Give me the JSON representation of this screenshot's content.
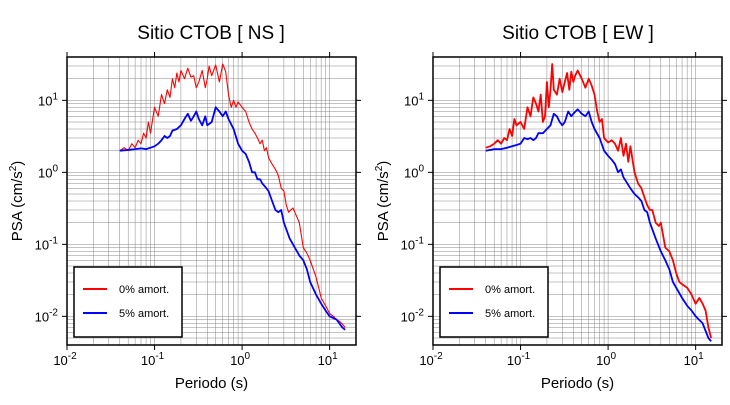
{
  "chart_data": [
    {
      "type": "line",
      "title": "Sitio CTOB [ NS ]",
      "xlabel": "Periodo (s)",
      "ylabel": "PSA (cm/s2)",
      "ylabel_main": "PSA (cm/s",
      "ylabel_sup": "2",
      "ylabel_close": ")",
      "xscale": "log",
      "yscale": "log",
      "xlim": [
        0.01,
        20
      ],
      "ylim": [
        0.004,
        40
      ],
      "grid": true,
      "legend_position": "bottom-left",
      "x_ticks": [
        {
          "base": "10",
          "exp": "-2"
        },
        {
          "base": "10",
          "exp": "-1"
        },
        {
          "base": "10",
          "exp": "0"
        },
        {
          "base": "10",
          "exp": "1"
        }
      ],
      "y_ticks": [
        {
          "base": "10",
          "exp": "-2"
        },
        {
          "base": "10",
          "exp": "-1"
        },
        {
          "base": "10",
          "exp": "0"
        },
        {
          "base": "10",
          "exp": "1"
        }
      ],
      "series": [
        {
          "name": "0% amort.",
          "color": "#ff0000",
          "x": [
            0.04,
            0.045,
            0.05,
            0.055,
            0.06,
            0.065,
            0.07,
            0.075,
            0.08,
            0.085,
            0.09,
            0.1,
            0.11,
            0.12,
            0.13,
            0.14,
            0.15,
            0.16,
            0.17,
            0.18,
            0.19,
            0.2,
            0.22,
            0.24,
            0.26,
            0.28,
            0.3,
            0.32,
            0.35,
            0.38,
            0.4,
            0.42,
            0.45,
            0.5,
            0.55,
            0.6,
            0.65,
            0.7,
            0.75,
            0.8,
            0.85,
            0.9,
            1.0,
            1.1,
            1.2,
            1.3,
            1.4,
            1.5,
            1.6,
            1.7,
            1.8,
            1.9,
            2.0,
            2.2,
            2.4,
            2.6,
            2.8,
            3.0,
            3.2,
            3.4,
            3.6,
            3.8,
            4.0,
            4.5,
            5.0,
            5.5,
            6.0,
            6.5,
            7.0,
            7.5,
            8.0,
            9.0,
            10,
            11,
            12,
            13,
            14,
            15
          ],
          "y": [
            2.0,
            2.2,
            2.0,
            2.5,
            2.2,
            2.8,
            2.5,
            3.5,
            3.0,
            5.0,
            3.5,
            8.0,
            6.0,
            12.0,
            9.0,
            14.0,
            11.0,
            20.0,
            15.0,
            24.0,
            18.0,
            26.0,
            20.0,
            28.0,
            21.0,
            22.0,
            15.0,
            18.0,
            26.0,
            15.0,
            20.0,
            30.0,
            22.0,
            31.0,
            18.0,
            32.0,
            25.0,
            12.0,
            8.0,
            10.0,
            8.0,
            9.5,
            8.0,
            7.0,
            5.0,
            4.0,
            3.5,
            3.0,
            2.5,
            2.8,
            2.0,
            2.2,
            1.6,
            1.3,
            1.1,
            0.9,
            0.6,
            0.55,
            0.35,
            0.28,
            0.3,
            0.32,
            0.28,
            0.2,
            0.09,
            0.075,
            0.06,
            0.045,
            0.035,
            0.025,
            0.018,
            0.014,
            0.011,
            0.01,
            0.009,
            0.0085,
            0.0078,
            0.007
          ]
        },
        {
          "name": "5% amort.",
          "color": "#0000ff",
          "x": [
            0.04,
            0.05,
            0.06,
            0.07,
            0.08,
            0.09,
            0.1,
            0.11,
            0.12,
            0.13,
            0.14,
            0.15,
            0.16,
            0.18,
            0.2,
            0.22,
            0.24,
            0.26,
            0.28,
            0.3,
            0.32,
            0.35,
            0.38,
            0.4,
            0.45,
            0.5,
            0.55,
            0.6,
            0.65,
            0.7,
            0.8,
            0.9,
            1.0,
            1.1,
            1.2,
            1.3,
            1.4,
            1.5,
            1.6,
            1.7,
            1.8,
            2.0,
            2.2,
            2.4,
            2.6,
            2.8,
            3.0,
            3.5,
            4.0,
            4.5,
            5.0,
            5.5,
            6.0,
            7.0,
            8.0,
            9.0,
            10,
            12,
            14,
            15
          ],
          "y": [
            2.0,
            2.05,
            2.1,
            2.15,
            2.1,
            2.2,
            2.3,
            2.5,
            2.8,
            3.2,
            3.0,
            3.2,
            3.8,
            4.0,
            4.5,
            5.5,
            6.5,
            5.2,
            6.0,
            7.0,
            5.5,
            4.5,
            6.0,
            4.5,
            5.0,
            8.0,
            7.0,
            6.0,
            7.0,
            5.5,
            4.0,
            2.5,
            2.0,
            1.8,
            1.4,
            1.0,
            1.0,
            0.8,
            0.8,
            0.7,
            0.65,
            0.55,
            0.4,
            0.3,
            0.28,
            0.3,
            0.2,
            0.12,
            0.09,
            0.07,
            0.06,
            0.045,
            0.03,
            0.02,
            0.015,
            0.012,
            0.01,
            0.009,
            0.007,
            0.0065
          ]
        }
      ]
    },
    {
      "type": "line",
      "title": "Sitio CTOB [ EW ]",
      "xlabel": "Periodo (s)",
      "ylabel": "PSA (cm/s2)",
      "ylabel_main": "PSA (cm/s",
      "ylabel_sup": "2",
      "ylabel_close": ")",
      "xscale": "log",
      "yscale": "log",
      "xlim": [
        0.01,
        20
      ],
      "ylim": [
        0.004,
        40
      ],
      "grid": true,
      "legend_position": "bottom-left",
      "x_ticks": [
        {
          "base": "10",
          "exp": "-2"
        },
        {
          "base": "10",
          "exp": "-1"
        },
        {
          "base": "10",
          "exp": "0"
        },
        {
          "base": "10",
          "exp": "1"
        }
      ],
      "y_ticks": [
        {
          "base": "10",
          "exp": "-2"
        },
        {
          "base": "10",
          "exp": "-1"
        },
        {
          "base": "10",
          "exp": "0"
        },
        {
          "base": "10",
          "exp": "1"
        }
      ],
      "series": [
        {
          "name": "0% amort.",
          "color": "#ff0000",
          "x": [
            0.04,
            0.045,
            0.05,
            0.055,
            0.06,
            0.065,
            0.07,
            0.075,
            0.08,
            0.085,
            0.09,
            0.1,
            0.11,
            0.12,
            0.13,
            0.14,
            0.15,
            0.16,
            0.17,
            0.18,
            0.19,
            0.2,
            0.21,
            0.22,
            0.23,
            0.24,
            0.26,
            0.28,
            0.3,
            0.32,
            0.34,
            0.36,
            0.38,
            0.4,
            0.42,
            0.45,
            0.5,
            0.55,
            0.6,
            0.65,
            0.7,
            0.75,
            0.8,
            0.85,
            0.9,
            1.0,
            1.1,
            1.2,
            1.3,
            1.4,
            1.5,
            1.6,
            1.7,
            1.8,
            2.0,
            2.2,
            2.4,
            2.6,
            2.8,
            3.0,
            3.2,
            3.5,
            3.8,
            4.0,
            4.5,
            5.0,
            5.5,
            6.0,
            6.5,
            7.0,
            8.0,
            9.0,
            10,
            11,
            12,
            13,
            14,
            15
          ],
          "y": [
            2.2,
            2.3,
            2.5,
            2.8,
            2.5,
            3.0,
            2.8,
            4.0,
            3.2,
            5.5,
            4.5,
            5.0,
            4.0,
            8.0,
            6.0,
            11.0,
            9.0,
            7.0,
            12.0,
            5.0,
            6.0,
            18.0,
            8.0,
            14.0,
            32.0,
            14.0,
            12.0,
            20.0,
            13.0,
            18.0,
            24.0,
            14.0,
            25.0,
            18.0,
            22.0,
            26.0,
            20.0,
            15.0,
            20.0,
            16.0,
            12.0,
            7.0,
            5.0,
            5.5,
            3.0,
            2.6,
            2.8,
            2.5,
            2.0,
            3.0,
            1.7,
            2.5,
            1.4,
            2.3,
            1.0,
            0.7,
            0.6,
            0.45,
            0.35,
            0.3,
            0.3,
            0.2,
            0.18,
            0.2,
            0.09,
            0.08,
            0.06,
            0.04,
            0.03,
            0.028,
            0.025,
            0.02,
            0.015,
            0.018,
            0.015,
            0.012,
            0.007,
            0.005
          ]
        },
        {
          "name": "5% amort.",
          "color": "#0000ff",
          "x": [
            0.04,
            0.05,
            0.06,
            0.07,
            0.08,
            0.09,
            0.1,
            0.11,
            0.12,
            0.13,
            0.14,
            0.15,
            0.16,
            0.18,
            0.2,
            0.22,
            0.24,
            0.26,
            0.28,
            0.3,
            0.32,
            0.35,
            0.38,
            0.4,
            0.45,
            0.5,
            0.55,
            0.6,
            0.65,
            0.7,
            0.8,
            0.9,
            1.0,
            1.1,
            1.2,
            1.3,
            1.4,
            1.5,
            1.6,
            1.8,
            2.0,
            2.2,
            2.4,
            2.6,
            2.8,
            3.0,
            3.5,
            4.0,
            4.5,
            5.0,
            5.5,
            6.0,
            7.0,
            8.0,
            9.0,
            10,
            12,
            14,
            15
          ],
          "y": [
            2.0,
            2.1,
            2.1,
            2.2,
            2.3,
            2.4,
            2.5,
            3.0,
            2.9,
            3.0,
            2.8,
            3.0,
            3.5,
            3.5,
            4.0,
            4.5,
            6.5,
            6.0,
            5.0,
            4.5,
            5.0,
            7.0,
            6.0,
            6.5,
            7.5,
            6.5,
            6.0,
            7.0,
            5.0,
            4.0,
            3.0,
            2.0,
            1.7,
            1.5,
            1.3,
            1.0,
            1.1,
            0.85,
            0.75,
            0.6,
            0.5,
            0.45,
            0.4,
            0.3,
            0.28,
            0.2,
            0.12,
            0.08,
            0.06,
            0.045,
            0.03,
            0.025,
            0.018,
            0.014,
            0.012,
            0.01,
            0.008,
            0.005,
            0.0045
          ]
        }
      ]
    }
  ]
}
